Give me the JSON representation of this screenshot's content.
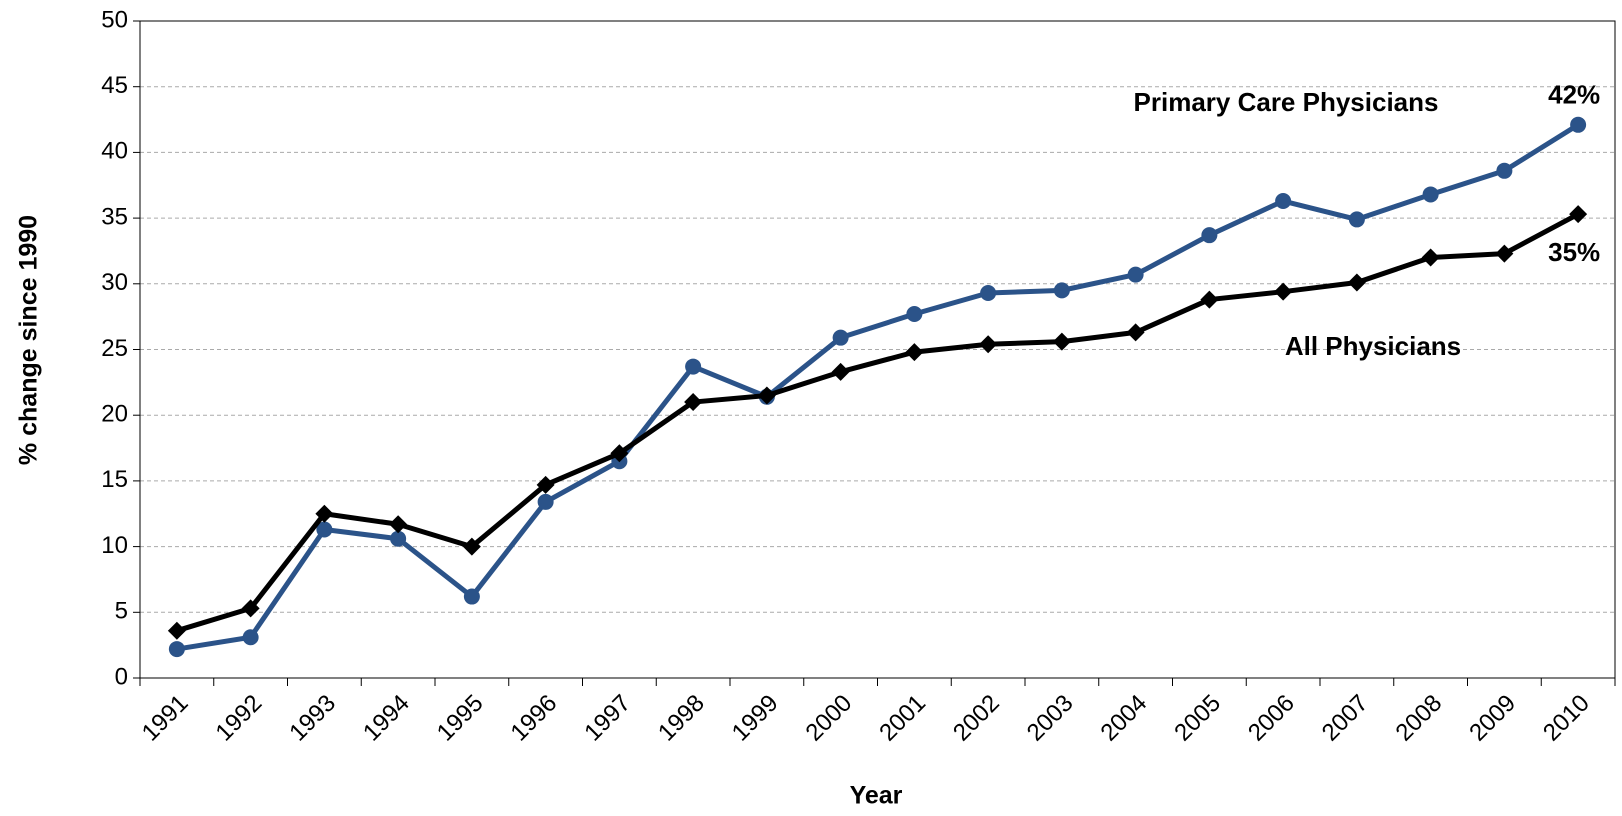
{
  "chart_data": {
    "type": "line",
    "y_label": "% change since 1990",
    "x_label": "Year",
    "categories": [
      "1991",
      "1992",
      "1993",
      "1994",
      "1995",
      "1996",
      "1997",
      "1998",
      "1999",
      "2000",
      "2001",
      "2002",
      "2003",
      "2004",
      "2005",
      "2006",
      "2007",
      "2008",
      "2009",
      "2010"
    ],
    "series": [
      {
        "name": "Primary Care Physicians",
        "color": "#2b5389",
        "marker": "circle",
        "values": [
          2.2,
          3.1,
          11.3,
          10.6,
          6.2,
          13.4,
          16.5,
          23.7,
          21.4,
          25.9,
          27.7,
          29.3,
          29.5,
          30.7,
          33.7,
          36.3,
          34.9,
          36.8,
          38.6,
          42.1
        ],
        "value_labels": [
          null,
          null,
          null,
          null,
          null,
          null,
          null,
          null,
          null,
          null,
          null,
          null,
          null,
          null,
          null,
          null,
          null,
          null,
          null,
          "42%"
        ]
      },
      {
        "name": "All Physicians",
        "color": "#000000",
        "marker": "diamond",
        "values": [
          3.6,
          5.3,
          12.5,
          11.7,
          10.0,
          14.7,
          17.1,
          21.0,
          21.5,
          23.3,
          24.8,
          25.4,
          25.6,
          26.3,
          28.8,
          29.4,
          30.1,
          32.0,
          32.3,
          35.3
        ],
        "value_labels": [
          null,
          null,
          null,
          null,
          null,
          null,
          null,
          null,
          null,
          null,
          null,
          null,
          null,
          null,
          null,
          null,
          null,
          null,
          null,
          "35%"
        ]
      }
    ],
    "ylim": [
      0,
      50
    ],
    "yticks": [
      0,
      5,
      10,
      15,
      20,
      25,
      30,
      35,
      40,
      45,
      50
    ],
    "grid": true
  }
}
